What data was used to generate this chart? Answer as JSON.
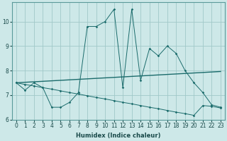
{
  "xlabel": "Humidex (Indice chaleur)",
  "bg_color": "#cde8e8",
  "grid_color": "#a0c8c8",
  "line_color": "#1a6b6b",
  "x_values": [
    0,
    1,
    2,
    3,
    4,
    5,
    6,
    7,
    8,
    9,
    10,
    11,
    12,
    13,
    14,
    15,
    16,
    17,
    18,
    19,
    20,
    21,
    22,
    23
  ],
  "series_zigzag": [
    7.5,
    7.2,
    7.5,
    7.3,
    6.5,
    6.5,
    6.7,
    7.1,
    9.8,
    9.8,
    10.0,
    10.5,
    7.3,
    10.5,
    7.6,
    8.9,
    8.6,
    9.0,
    8.7,
    8.0,
    7.5,
    7.1,
    6.6,
    6.5
  ],
  "series_rising": [
    7.5,
    7.52,
    7.54,
    7.56,
    7.58,
    7.6,
    7.62,
    7.64,
    7.66,
    7.68,
    7.7,
    7.72,
    7.74,
    7.76,
    7.78,
    7.8,
    7.82,
    7.84,
    7.86,
    7.88,
    7.9,
    7.92,
    7.94,
    7.96
  ],
  "series_desc": [
    7.5,
    7.43,
    7.37,
    7.3,
    7.24,
    7.17,
    7.1,
    7.04,
    6.97,
    6.9,
    6.84,
    6.77,
    6.7,
    6.64,
    6.57,
    6.5,
    6.44,
    6.37,
    6.3,
    6.24,
    6.17,
    6.57,
    6.54,
    6.47
  ],
  "ylim": [
    6.0,
    10.8
  ],
  "yticks": [
    6,
    7,
    8,
    9,
    10
  ],
  "xlim": [
    -0.5,
    23.5
  ]
}
